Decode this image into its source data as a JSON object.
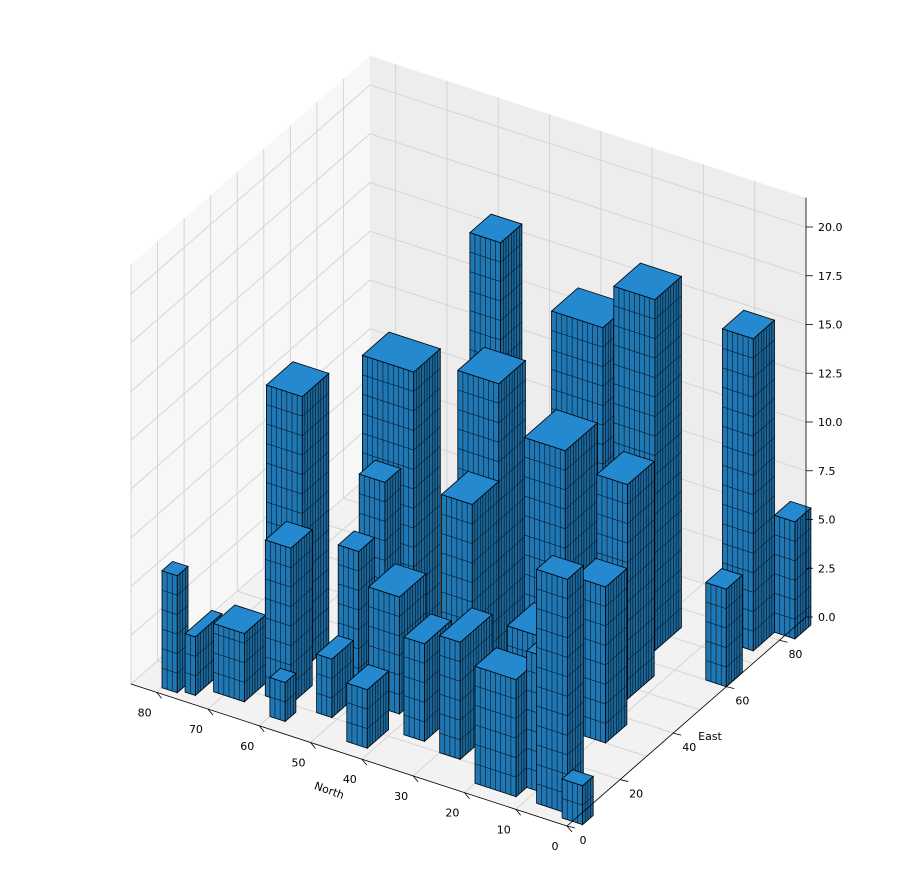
{
  "chart_data": {
    "type": "bar3d",
    "title": "",
    "xlabel": "North",
    "ylabel": "East",
    "zlabel": "",
    "xlim": [
      0,
      85
    ],
    "ylim": [
      0,
      90
    ],
    "zlim": [
      0,
      20
    ],
    "x_ticks": [
      "0",
      "10",
      "20",
      "30",
      "40",
      "50",
      "60",
      "70",
      "80"
    ],
    "y_ticks": [
      "0",
      "20",
      "40",
      "60",
      "80"
    ],
    "z_ticks": [
      "0.0",
      "2.5",
      "5.0",
      "7.5",
      "10.0",
      "12.5",
      "15.0",
      "17.5",
      "20.0"
    ],
    "grid": true,
    "bar_color": "#1f77b4",
    "edge_color": "#000000",
    "bars": [
      {
        "north": 80,
        "east": 2,
        "dn": 3,
        "de": 4,
        "height": 6
      },
      {
        "north": 76,
        "east": 3,
        "dn": 2,
        "de": 10,
        "height": 3
      },
      {
        "north": 72,
        "east": 6,
        "dn": 6,
        "de": 8,
        "height": 3.5
      },
      {
        "north": 70,
        "east": 22,
        "dn": 7,
        "de": 10,
        "height": 14
      },
      {
        "north": 64,
        "east": 10,
        "dn": 5,
        "de": 8,
        "height": 8
      },
      {
        "north": 60,
        "east": 4,
        "dn": 3,
        "de": 4,
        "height": 2
      },
      {
        "north": 58,
        "east": 35,
        "dn": 10,
        "de": 10,
        "height": 15
      },
      {
        "north": 56,
        "east": 22,
        "dn": 4,
        "de": 6,
        "height": 7
      },
      {
        "north": 55,
        "east": 28,
        "dn": 5,
        "de": 6,
        "height": 10
      },
      {
        "north": 54,
        "east": 10,
        "dn": 3,
        "de": 8,
        "height": 3
      },
      {
        "north": 50,
        "east": 60,
        "dn": 6,
        "de": 8,
        "height": 19
      },
      {
        "north": 48,
        "east": 18,
        "dn": 6,
        "de": 10,
        "height": 6
      },
      {
        "north": 45,
        "east": 4,
        "dn": 4,
        "de": 8,
        "height": 3
      },
      {
        "north": 42,
        "east": 40,
        "dn": 8,
        "de": 10,
        "height": 15
      },
      {
        "north": 40,
        "east": 30,
        "dn": 6,
        "de": 10,
        "height": 10
      },
      {
        "north": 38,
        "east": 12,
        "dn": 4,
        "de": 10,
        "height": 5
      },
      {
        "north": 36,
        "east": 24,
        "dn": 4,
        "de": 4,
        "height": 3
      },
      {
        "north": 32,
        "east": 56,
        "dn": 10,
        "de": 10,
        "height": 17
      },
      {
        "north": 30,
        "east": 10,
        "dn": 4,
        "de": 12,
        "height": 6
      },
      {
        "north": 28,
        "east": 38,
        "dn": 8,
        "de": 12,
        "height": 13
      },
      {
        "north": 24,
        "east": 64,
        "dn": 8,
        "de": 10,
        "height": 18
      },
      {
        "north": 22,
        "east": 20,
        "dn": 6,
        "de": 10,
        "height": 6
      },
      {
        "north": 20,
        "east": 4,
        "dn": 8,
        "de": 8,
        "height": 6
      },
      {
        "north": 18,
        "east": 46,
        "dn": 6,
        "de": 10,
        "height": 11
      },
      {
        "north": 14,
        "east": 30,
        "dn": 6,
        "de": 8,
        "height": 8
      },
      {
        "north": 12,
        "east": 8,
        "dn": 6,
        "de": 6,
        "height": 7
      },
      {
        "north": 8,
        "east": 74,
        "dn": 6,
        "de": 8,
        "height": 16
      },
      {
        "north": 8,
        "east": 4,
        "dn": 6,
        "de": 6,
        "height": 12
      },
      {
        "north": 4,
        "east": 60,
        "dn": 4,
        "de": 6,
        "height": 5
      },
      {
        "north": 2,
        "east": 82,
        "dn": 4,
        "de": 6,
        "height": 6
      },
      {
        "north": 2,
        "east": 2,
        "dn": 4,
        "de": 4,
        "height": 2
      }
    ]
  }
}
